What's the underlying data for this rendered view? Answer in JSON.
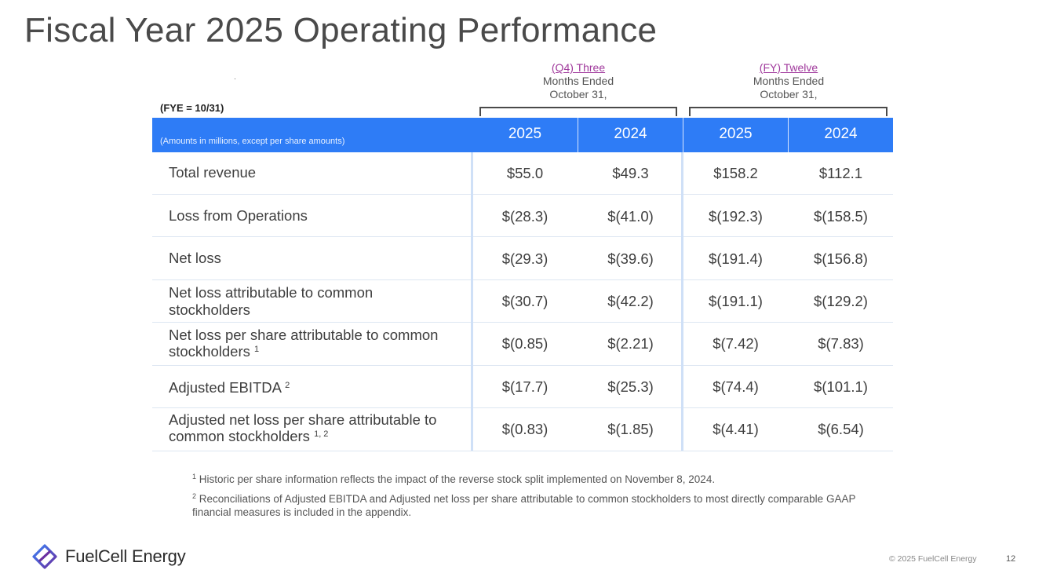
{
  "page": {
    "title": "Fiscal Year 2025 Operating Performance",
    "fye_label": "(FYE = 10/31)",
    "amounts_note": "(Amounts in millions, except per share amounts)"
  },
  "periods": [
    {
      "link": "(Q4) Three",
      "line2": "Months Ended",
      "line3": "October 31,"
    },
    {
      "link": "(FY) Twelve",
      "line2": "Months Ended",
      "line3": "October 31,"
    }
  ],
  "columns": [
    "2025",
    "2024",
    "2025",
    "2024"
  ],
  "rows": [
    {
      "label": "Total revenue",
      "sup": "",
      "values": [
        "$55.0",
        "$49.3",
        "$158.2",
        "$112.1"
      ]
    },
    {
      "label": "Loss from Operations",
      "sup": "",
      "values": [
        "$(28.3)",
        "$(41.0)",
        "$(192.3)",
        "$(158.5)"
      ]
    },
    {
      "label": "Net loss",
      "sup": "",
      "values": [
        "$(29.3)",
        "$(39.6)",
        "$(191.4)",
        "$(156.8)"
      ]
    },
    {
      "label": "Net loss attributable to common stockholders",
      "sup": "",
      "values": [
        "$(30.7)",
        "$(42.2)",
        "$(191.1)",
        "$(129.2)"
      ]
    },
    {
      "label": "Net loss per share attributable to common stockholders",
      "sup": "1",
      "values": [
        "$(0.85)",
        "$(2.21)",
        "$(7.42)",
        "$(7.83)"
      ]
    },
    {
      "label": "Adjusted EBITDA",
      "sup": "2",
      "values": [
        "$(17.7)",
        "$(25.3)",
        "$(74.4)",
        "$(101.1)"
      ]
    },
    {
      "label": "Adjusted net loss per share attributable to common stockholders",
      "sup": "1, 2",
      "values": [
        "$(0.83)",
        "$(1.85)",
        "$(4.41)",
        "$(6.54)"
      ]
    }
  ],
  "footnotes": [
    {
      "mark": "1",
      "text": "Historic per share information reflects the impact of the reverse stock split implemented on November 8, 2024."
    },
    {
      "mark": "2",
      "text": "Reconciliations of Adjusted EBITDA  and Adjusted net loss per share attributable to common stockholders to most directly comparable GAAP financial measures is included in the appendix."
    }
  ],
  "footer": {
    "brand": "FuelCell Energy",
    "logo_icon": "fuelcell-diamond-icon",
    "copyright": "© 2025 FuelCell Energy",
    "page_number": "12"
  },
  "colors": {
    "header_bg": "#2e7cf6",
    "link": "#a0399c",
    "logo_purple": "#6a2fa0"
  }
}
